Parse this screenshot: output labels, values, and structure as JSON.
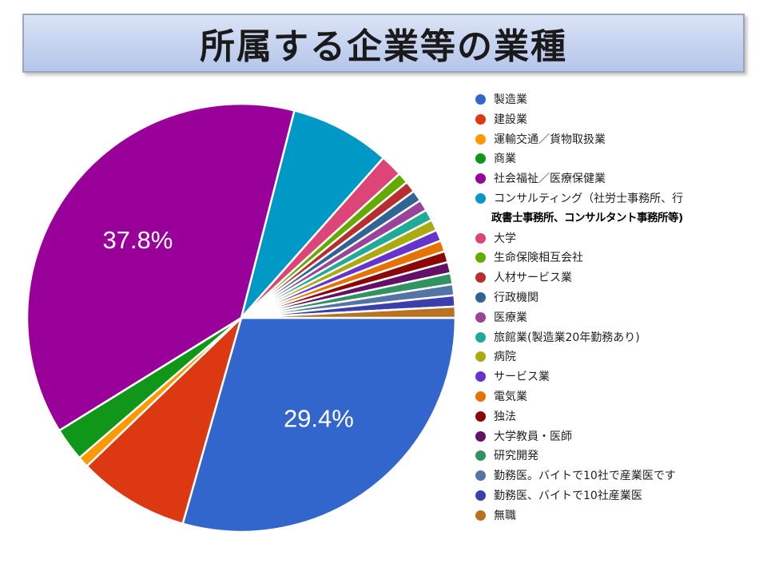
{
  "title": "所属する企業等の業種",
  "chart_data": {
    "type": "pie",
    "title": "所属する企業等の業種",
    "legend_position": "right",
    "slice_labels": [
      {
        "index": 0,
        "text": "29.4%"
      },
      {
        "index": 4,
        "text": "37.8%"
      }
    ],
    "slices": [
      {
        "label": "製造業",
        "value": 29.4,
        "color": "#3366cc"
      },
      {
        "label": "建設業",
        "value": 8.4,
        "color": "#dc3912"
      },
      {
        "label": "運輸交通／貨物取扱業",
        "value": 0.84,
        "color": "#ff9900"
      },
      {
        "label": "商業",
        "value": 2.52,
        "color": "#109618"
      },
      {
        "label": "社会福祉／医療保健業",
        "value": 37.8,
        "color": "#990099"
      },
      {
        "label": "コンサルティング（社労士事務所、行",
        "label_line2": "政書士事務所、コンサルタント事務所等)",
        "value": 7.56,
        "color": "#0099c6"
      },
      {
        "label": "大学",
        "value": 1.68,
        "color": "#dd4477"
      },
      {
        "label": "生命保険相互会社",
        "value": 0.84,
        "color": "#66aa00"
      },
      {
        "label": "人材サービス業",
        "value": 0.84,
        "color": "#b82e2e"
      },
      {
        "label": "行政機関",
        "value": 0.84,
        "color": "#316395"
      },
      {
        "label": "医療業",
        "value": 0.84,
        "color": "#994499"
      },
      {
        "label": "旅館業(製造業20年勤務あり)",
        "value": 0.84,
        "color": "#22aa99"
      },
      {
        "label": "病院",
        "value": 0.84,
        "color": "#aaaa11"
      },
      {
        "label": "サービス業",
        "value": 0.84,
        "color": "#6633cc"
      },
      {
        "label": "電気業",
        "value": 0.84,
        "color": "#e67300"
      },
      {
        "label": "独法",
        "value": 0.84,
        "color": "#8b0707"
      },
      {
        "label": "大学教員・医師",
        "value": 0.84,
        "color": "#651067"
      },
      {
        "label": "研究開発",
        "value": 0.84,
        "color": "#329262"
      },
      {
        "label": "勤務医。バイトで10社で産業医です",
        "value": 0.84,
        "color": "#5574a6"
      },
      {
        "label": "勤務医、バイトで10社産業医",
        "value": 0.84,
        "color": "#3b3eac"
      },
      {
        "label": "無職",
        "value": 0.84,
        "color": "#b77322"
      }
    ]
  }
}
